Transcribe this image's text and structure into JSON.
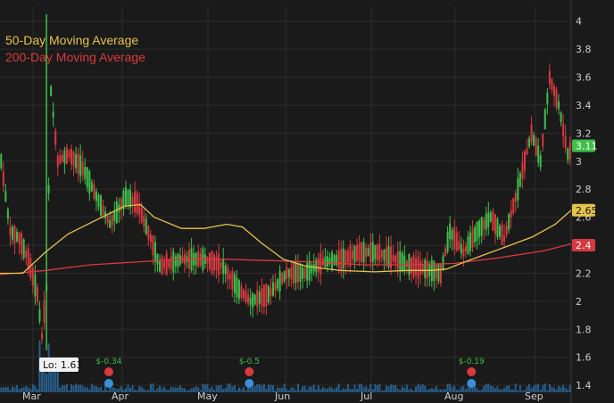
{
  "chart_data": {
    "type": "candlestick",
    "title": "",
    "xlabel": "",
    "ylabel": "",
    "ylim": [
      1.35,
      4.1
    ],
    "y_ticks": [
      1.4,
      1.6,
      1.8,
      2,
      2.2,
      2.4,
      2.6,
      2.8,
      3,
      3.2,
      3.4,
      3.6,
      3.8,
      4
    ],
    "months": [
      "Mar",
      "Apr",
      "May",
      "Jun",
      "Jul",
      "Aug",
      "Sep"
    ],
    "grid": true,
    "legend": {
      "placement": "top-left",
      "ma50_label": "50-Day Moving Average",
      "ma200_label": "200-Day Moving Average"
    },
    "price_badges": {
      "last": "3.11",
      "ma50": "2.65",
      "ma200": "2.4"
    },
    "low_callout": "Lo: 1.63",
    "events": [
      {
        "label": "$-0.34",
        "day": 48
      },
      {
        "label": "$-0.5",
        "day": 110
      },
      {
        "label": "$-0.19",
        "day": 208
      }
    ],
    "series_ma50": [
      [
        0,
        2.2
      ],
      [
        10,
        2.2
      ],
      [
        20,
        2.35
      ],
      [
        30,
        2.48
      ],
      [
        45,
        2.6
      ],
      [
        55,
        2.68
      ],
      [
        62,
        2.69
      ],
      [
        68,
        2.6
      ],
      [
        80,
        2.52
      ],
      [
        90,
        2.52
      ],
      [
        100,
        2.55
      ],
      [
        107,
        2.53
      ],
      [
        115,
        2.42
      ],
      [
        125,
        2.3
      ],
      [
        135,
        2.25
      ],
      [
        150,
        2.22
      ],
      [
        165,
        2.21
      ],
      [
        180,
        2.22
      ],
      [
        190,
        2.22
      ],
      [
        197,
        2.23
      ],
      [
        205,
        2.28
      ],
      [
        215,
        2.34
      ],
      [
        225,
        2.4
      ],
      [
        235,
        2.46
      ],
      [
        245,
        2.55
      ],
      [
        252,
        2.65
      ]
    ],
    "series_ma200": [
      [
        0,
        2.19
      ],
      [
        20,
        2.22
      ],
      [
        40,
        2.26
      ],
      [
        60,
        2.28
      ],
      [
        80,
        2.3
      ],
      [
        100,
        2.3
      ],
      [
        120,
        2.29
      ],
      [
        140,
        2.28
      ],
      [
        160,
        2.26
      ],
      [
        180,
        2.26
      ],
      [
        200,
        2.27
      ],
      [
        220,
        2.31
      ],
      [
        240,
        2.36
      ],
      [
        252,
        2.41
      ]
    ],
    "colors": {
      "background": "#1a1a1a",
      "up": "#3fbf4a",
      "down": "#d8393f",
      "ma50": "#e6c34a",
      "ma200": "#d8393f",
      "last_badge": "#3fbf4a",
      "ma50_badge": "#e6c34a",
      "ma200_badge": "#d8393f",
      "grid": "#2c2c2c",
      "volume": "#2a6fa8"
    }
  }
}
